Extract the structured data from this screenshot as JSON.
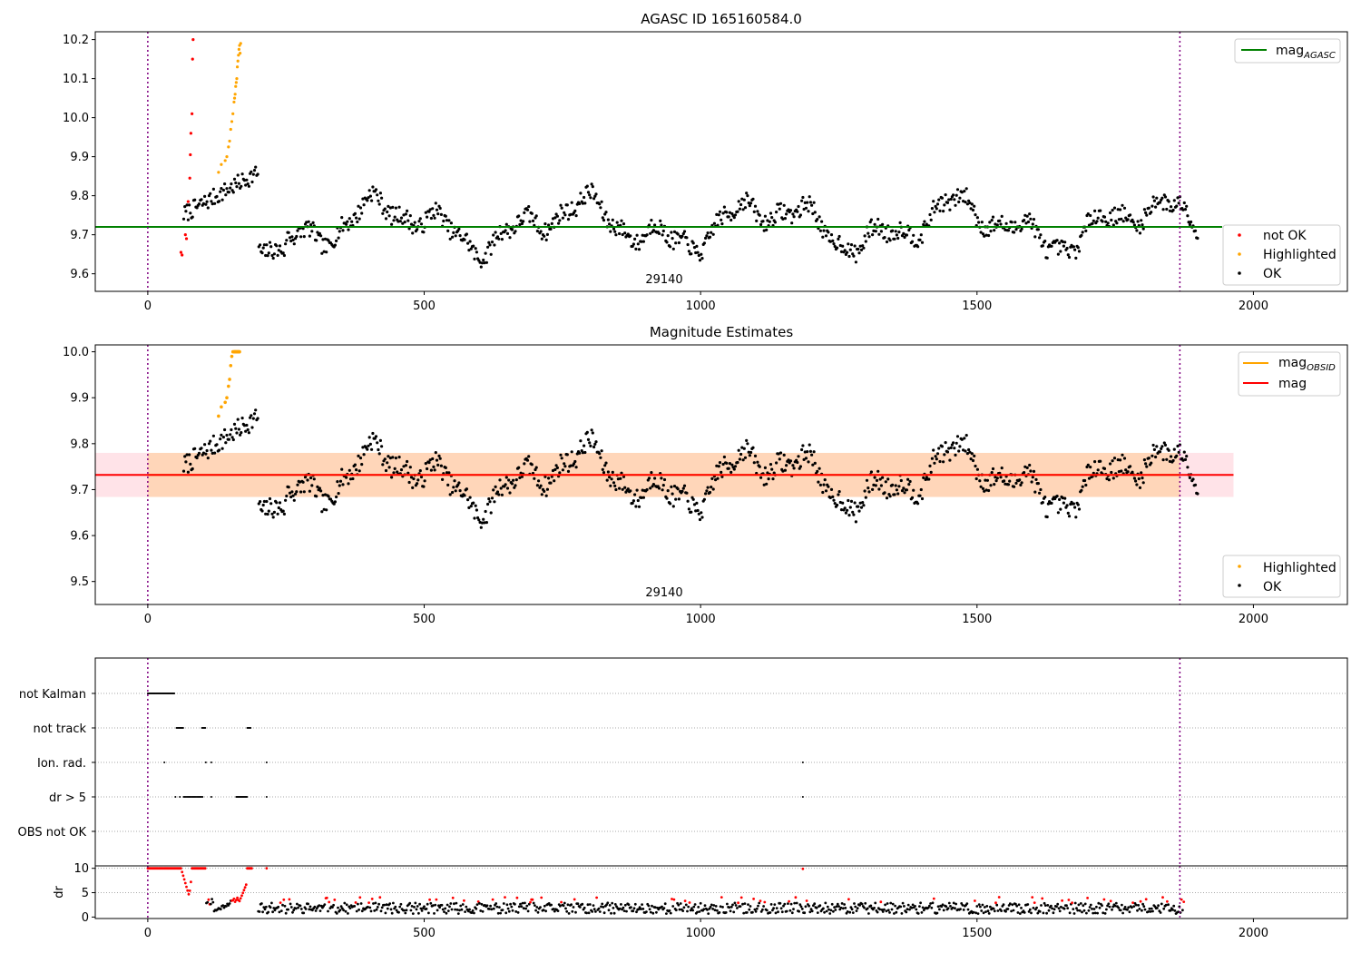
{
  "chart_data": [
    {
      "type": "scatter",
      "title": "AGASC ID 165160584.0",
      "xlim": [
        -95,
        2170
      ],
      "ylim": [
        9.555,
        10.22
      ],
      "xticks": [
        0,
        500,
        1000,
        1500,
        2000
      ],
      "yticks": [
        9.6,
        9.7,
        9.8,
        9.9,
        10.0,
        10.1,
        10.2
      ],
      "ytick_labels": [
        "9.6",
        "9.7",
        "9.8",
        "9.9",
        "10.0",
        "10.1",
        "10.2"
      ],
      "reference_lines": [
        {
          "name": "mag",
          "subscript": "AGASC",
          "orientation": "horizontal",
          "value": 9.72,
          "color": "#008000"
        }
      ],
      "vertical_markers": [
        0,
        1867
      ],
      "annotation": {
        "text": "29140",
        "x": 933,
        "y": 9.58
      },
      "series": [
        {
          "name": "not OK",
          "color": "#ff0000",
          "points": [
            [
              60,
              9.655
            ],
            [
              62,
              9.648
            ],
            [
              68,
              9.7
            ],
            [
              70,
              9.69
            ],
            [
              73,
              9.785
            ],
            [
              76,
              9.845
            ],
            [
              77,
              9.905
            ],
            [
              78,
              9.96
            ],
            [
              80,
              10.01
            ],
            [
              81,
              10.15
            ],
            [
              82,
              10.2
            ]
          ]
        },
        {
          "name": "Highlighted",
          "color": "#ffa500",
          "points": [
            [
              128,
              9.86
            ],
            [
              133,
              9.88
            ],
            [
              140,
              9.89
            ],
            [
              143,
              9.9
            ],
            [
              146,
              9.925
            ],
            [
              148,
              9.94
            ],
            [
              150,
              9.97
            ],
            [
              152,
              9.99
            ],
            [
              154,
              10.01
            ],
            [
              156,
              10.04
            ],
            [
              157,
              10.05
            ],
            [
              158,
              10.06
            ],
            [
              159,
              10.08
            ],
            [
              160,
              10.09
            ],
            [
              161,
              10.1
            ],
            [
              162,
              10.13
            ],
            [
              163,
              10.145
            ],
            [
              164,
              10.16
            ],
            [
              165,
              10.175
            ],
            [
              166,
              10.185
            ],
            [
              167,
              10.165
            ],
            [
              168,
              10.19
            ]
          ]
        },
        {
          "name": "OK",
          "color": "#000000",
          "generator": {
            "kind": "noisy-curve",
            "x_start": 65,
            "x_end": 1900,
            "step": 2,
            "seed": 7
          }
        }
      ],
      "legends": [
        {
          "position": "top-right",
          "entries": [
            {
              "label": "mag",
              "subscript": "AGASC",
              "kind": "line",
              "color": "#008000"
            }
          ]
        },
        {
          "position": "bottom-right",
          "entries": [
            {
              "label": "not OK",
              "kind": "dot",
              "color": "#ff0000"
            },
            {
              "label": "Highlighted",
              "kind": "dot",
              "color": "#ffa500"
            },
            {
              "label": "OK",
              "kind": "dot",
              "color": "#000000"
            }
          ]
        }
      ]
    },
    {
      "type": "scatter",
      "title": "Magnitude Estimates",
      "xlim": [
        -95,
        2170
      ],
      "ylim": [
        9.45,
        10.015
      ],
      "xticks": [
        0,
        500,
        1000,
        1500,
        2000
      ],
      "yticks": [
        9.5,
        9.6,
        9.7,
        9.8,
        9.9,
        10.0
      ],
      "ytick_labels": [
        "9.5",
        "9.6",
        "9.7",
        "9.8",
        "9.9",
        "10.0"
      ],
      "bands": [
        {
          "x_range": [
            -95,
            1964
          ],
          "y_range": [
            9.684,
            9.78
          ],
          "color": "#ffc0cb",
          "opacity": 0.45
        },
        {
          "x_range": [
            0,
            1867
          ],
          "y_range": [
            9.684,
            9.78
          ],
          "color": "#ffa500",
          "opacity": 0.2
        }
      ],
      "reference_lines": [
        {
          "name": "mag",
          "subscript": "OBSID",
          "orientation": "horizontal",
          "value": 9.732,
          "color": "#ffa500",
          "x_range": [
            0,
            1867
          ]
        },
        {
          "name": "mag",
          "orientation": "horizontal",
          "value": 9.732,
          "color": "#ff0000",
          "x_range": [
            -95,
            1964
          ]
        }
      ],
      "vertical_markers": [
        0,
        1867
      ],
      "annotation": {
        "text": "29140",
        "x": 933,
        "y": 9.475
      },
      "series": [
        {
          "name": "Highlighted",
          "color": "#ffa500",
          "points": [
            [
              128,
              9.86
            ],
            [
              133,
              9.88
            ],
            [
              140,
              9.89
            ],
            [
              143,
              9.9
            ],
            [
              146,
              9.925
            ],
            [
              148,
              9.94
            ],
            [
              150,
              9.97
            ],
            [
              152,
              9.99
            ],
            [
              154,
              10.0
            ],
            [
              156,
              10.0
            ],
            [
              157,
              10.0
            ],
            [
              158,
              10.0
            ],
            [
              159,
              10.0
            ],
            [
              160,
              10.0
            ],
            [
              161,
              10.0
            ],
            [
              162,
              10.0
            ],
            [
              163,
              10.0
            ],
            [
              164,
              10.0
            ],
            [
              165,
              10.0
            ],
            [
              166,
              10.0
            ]
          ]
        },
        {
          "name": "OK",
          "color": "#000000",
          "generator": {
            "kind": "noisy-curve",
            "x_start": 65,
            "x_end": 1900,
            "step": 2,
            "seed": 7
          }
        }
      ],
      "legends": [
        {
          "position": "top-right",
          "entries": [
            {
              "label": "mag",
              "subscript": "OBSID",
              "kind": "line",
              "color": "#ffa500"
            },
            {
              "label": "mag",
              "kind": "line",
              "color": "#ff0000"
            }
          ]
        },
        {
          "position": "bottom-right",
          "entries": [
            {
              "label": "Highlighted",
              "kind": "dot",
              "color": "#ffa500"
            },
            {
              "label": "OK",
              "kind": "dot",
              "color": "#000000"
            }
          ]
        }
      ]
    },
    {
      "type": "scatter",
      "title": "",
      "xlim": [
        -95,
        2170
      ],
      "categories": [
        "not Kalman",
        "not track",
        "Ion. rad.",
        "dr > 5",
        "OBS not OK"
      ],
      "vertical_markers": [
        0,
        1867
      ],
      "flag_points": {
        "not Kalman": [
          [
            0,
            48,
            1.5
          ]
        ],
        "not track": [
          [
            52,
            65,
            1.5
          ],
          [
            98,
            105,
            1.5
          ],
          [
            180,
            187,
            1.5
          ]
        ],
        "Ion. rad.": [
          [
            30,
            30,
            1
          ],
          [
            105,
            105,
            1
          ],
          [
            115,
            115,
            1
          ],
          [
            215,
            215,
            1
          ],
          [
            1185,
            1185,
            1
          ]
        ],
        "dr > 5": [
          [
            50,
            50,
            1
          ],
          [
            58,
            58,
            1
          ],
          [
            65,
            100,
            2
          ],
          [
            115,
            115,
            1
          ],
          [
            160,
            180,
            1.5
          ],
          [
            215,
            215,
            1
          ],
          [
            1185,
            1185,
            1
          ]
        ],
        "OBS not OK": []
      }
    },
    {
      "type": "scatter",
      "title": "",
      "xlabel": "",
      "ylabel": "dr",
      "xlim": [
        -95,
        2170
      ],
      "ylim": [
        -0.3,
        10.5
      ],
      "xticks": [
        0,
        500,
        1000,
        1500,
        2000
      ],
      "yticks": [
        0,
        5,
        10
      ],
      "ytick_labels": [
        "0",
        "5",
        "10"
      ],
      "vertical_markers": [
        0,
        1867
      ],
      "generator": {
        "kind": "dr-scatter",
        "x_start": 0,
        "x_end": 1875,
        "step": 2,
        "seed": 11
      }
    }
  ]
}
